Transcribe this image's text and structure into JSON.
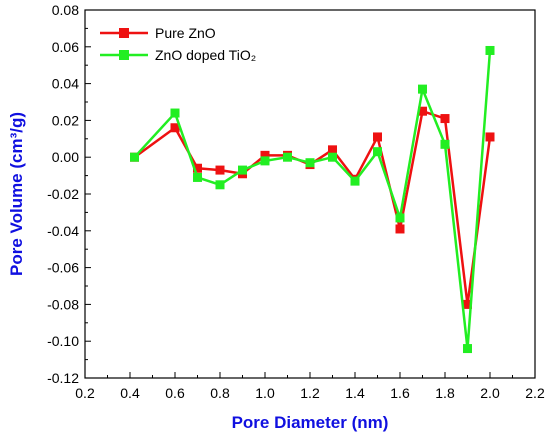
{
  "chart_data": {
    "type": "line",
    "title": "",
    "xlabel": "Pore Diameter (nm)",
    "ylabel": "Pore Volume (cm³/g)",
    "xlim": [
      0.2,
      2.2
    ],
    "ylim": [
      -0.12,
      0.08
    ],
    "xticks": [
      "0.2",
      "0.4",
      "0.6",
      "0.8",
      "1.0",
      "1.2",
      "1.4",
      "1.6",
      "1.8",
      "2.0",
      "2.2"
    ],
    "yticks": [
      "0.08",
      "0.06",
      "0.04",
      "0.02",
      "0.00",
      "-0.02",
      "-0.04",
      "-0.06",
      "-0.08",
      "-0.10",
      "-0.12"
    ],
    "grid": false,
    "legend_position": "top-left",
    "series": [
      {
        "name": "Pure ZnO",
        "color": "#ee1111",
        "marker": "square",
        "x": [
          0.42,
          0.6,
          0.7,
          0.8,
          0.9,
          1.0,
          1.1,
          1.2,
          1.3,
          1.4,
          1.5,
          1.6,
          1.7,
          1.8,
          1.9,
          2.0
        ],
        "values": [
          0.0,
          0.016,
          -0.006,
          -0.007,
          -0.009,
          0.001,
          0.001,
          -0.004,
          0.004,
          -0.012,
          0.011,
          -0.039,
          0.025,
          0.021,
          -0.08,
          0.011
        ]
      },
      {
        "name": "ZnO doped TiO₂",
        "color": "#22ee22",
        "marker": "square",
        "x": [
          0.42,
          0.6,
          0.7,
          0.8,
          0.9,
          1.0,
          1.1,
          1.2,
          1.3,
          1.4,
          1.5,
          1.6,
          1.7,
          1.8,
          1.9,
          2.0
        ],
        "values": [
          0.0,
          0.024,
          -0.011,
          -0.015,
          -0.007,
          -0.002,
          0.0,
          -0.003,
          0.0,
          -0.013,
          0.003,
          -0.033,
          0.037,
          0.007,
          -0.104,
          0.058
        ]
      }
    ]
  }
}
